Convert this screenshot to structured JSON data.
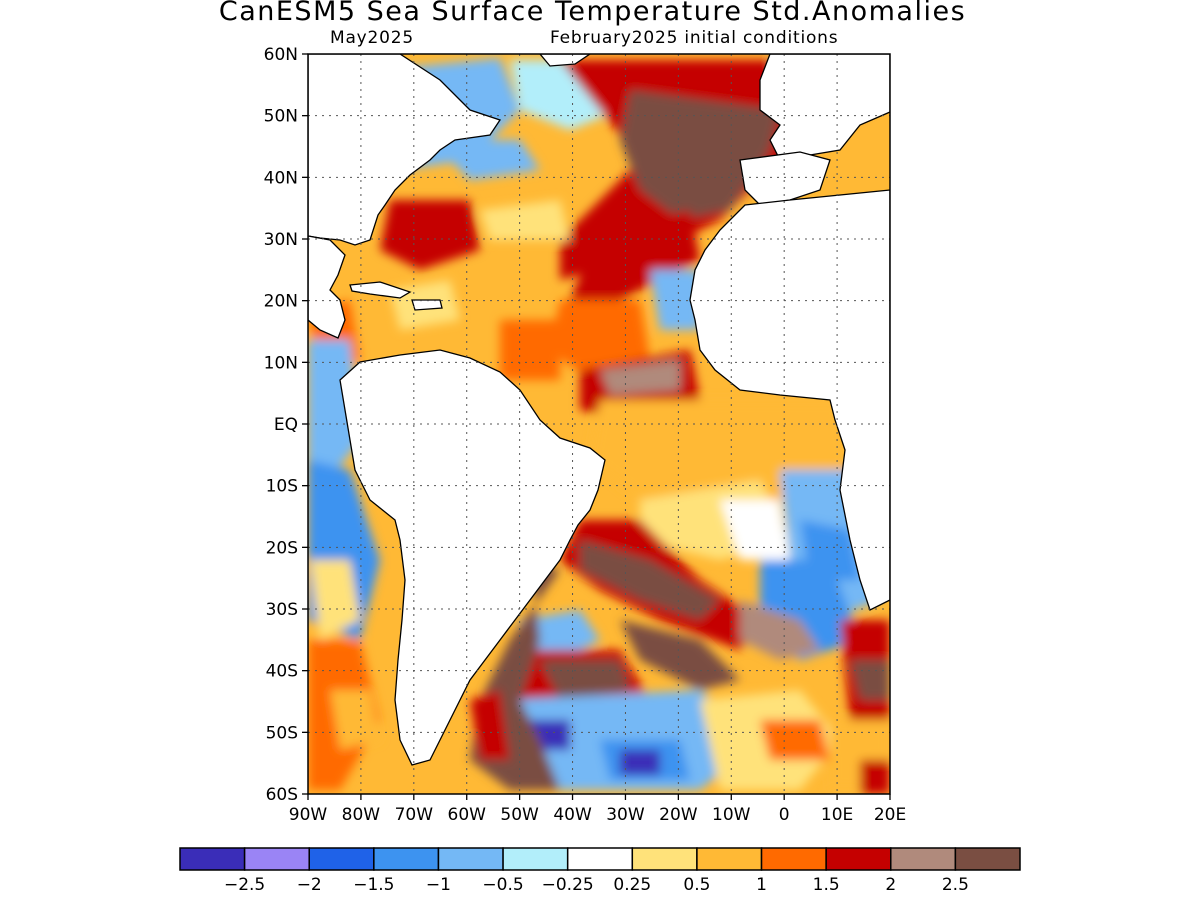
{
  "title": "CanESM5 Sea Surface Temperature Std.Anomalies",
  "valid_month": "May2025",
  "init_label": "February2025 initial conditions",
  "lat_labels": [
    "60N",
    "50N",
    "40N",
    "30N",
    "20N",
    "10N",
    "EQ",
    "10S",
    "20S",
    "30S",
    "40S",
    "50S",
    "60S"
  ],
  "lon_labels": [
    "90W",
    "80W",
    "70W",
    "60W",
    "50W",
    "40W",
    "30W",
    "20W",
    "10W",
    "0",
    "10E",
    "20E"
  ],
  "legend": {
    "labels": [
      "-2.5",
      "-2",
      "-1.5",
      "-1",
      "-0.5",
      "-0.25",
      "0.25",
      "0.5",
      "1",
      "1.5",
      "2",
      "2.5"
    ],
    "colors": [
      "#3a2db8",
      "#9a84f5",
      "#1f62e8",
      "#3d93f0",
      "#74b8f5",
      "#b2eefa",
      "#ffffff",
      "#ffe27a",
      "#ffb935",
      "#ff6a00",
      "#c50000",
      "#b08a7c",
      "#7a4e42"
    ]
  }
}
